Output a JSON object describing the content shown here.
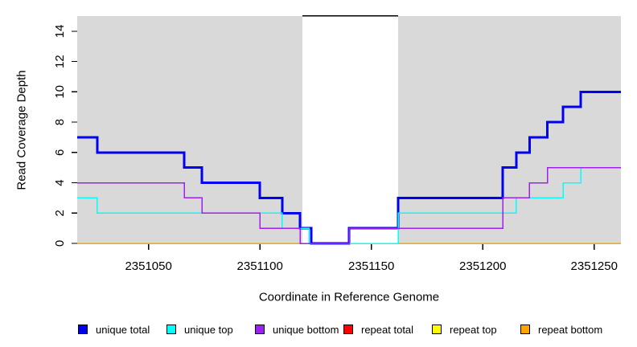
{
  "chart_data": {
    "type": "step",
    "title": "",
    "xlabel": "Coordinate in Reference Genome",
    "ylabel": "Read Coverage Depth",
    "xlim": [
      2351018,
      2351262
    ],
    "ylim": [
      0,
      15
    ],
    "x_ticks": [
      2351050,
      2351100,
      2351150,
      2351200,
      2351250
    ],
    "y_ticks": [
      0,
      2,
      4,
      6,
      8,
      10,
      12,
      14
    ],
    "grid": false,
    "plot_background": "#D9D9D9",
    "page_background": "#FFFFFF",
    "gap_region": {
      "x_start": 2351119,
      "x_end": 2351162,
      "fill": "#FFFFFF",
      "top_border_color": "#000000"
    },
    "series": [
      {
        "name": "repeat total",
        "color": "#FF0000",
        "line_width": 1.5,
        "steps": [
          [
            2351018,
            0
          ]
        ]
      },
      {
        "name": "repeat top",
        "color": "#FFFF00",
        "line_width": 1.5,
        "steps": [
          [
            2351018,
            0
          ]
        ]
      },
      {
        "name": "repeat bottom",
        "color": "#FFA500",
        "line_width": 1.5,
        "steps": [
          [
            2351018,
            0
          ]
        ]
      },
      {
        "name": "unique total",
        "color": "#0000F0",
        "line_width": 3,
        "steps": [
          [
            2351018,
            7
          ],
          [
            2351027,
            6
          ],
          [
            2351066,
            5
          ],
          [
            2351074,
            4
          ],
          [
            2351100,
            3
          ],
          [
            2351110,
            2
          ],
          [
            2351118,
            1
          ],
          [
            2351123,
            0
          ],
          [
            2351140,
            1
          ],
          [
            2351162,
            3
          ],
          [
            2351209,
            5
          ],
          [
            2351215,
            6
          ],
          [
            2351221,
            7
          ],
          [
            2351229,
            8
          ],
          [
            2351236,
            9
          ],
          [
            2351244,
            10
          ]
        ]
      },
      {
        "name": "unique top",
        "color": "#00FFFF",
        "line_width": 1.5,
        "steps": [
          [
            2351018,
            3
          ],
          [
            2351027,
            2
          ],
          [
            2351110,
            1
          ],
          [
            2351122,
            0
          ],
          [
            2351162,
            2
          ],
          [
            2351215,
            3
          ],
          [
            2351236,
            4
          ],
          [
            2351244,
            5
          ]
        ]
      },
      {
        "name": "unique bottom",
        "color": "#A020F0",
        "line_width": 1.5,
        "steps": [
          [
            2351018,
            4
          ],
          [
            2351066,
            3
          ],
          [
            2351074,
            2
          ],
          [
            2351100,
            1
          ],
          [
            2351118,
            0
          ],
          [
            2351140,
            1
          ],
          [
            2351209,
            3
          ],
          [
            2351221,
            4
          ],
          [
            2351229,
            5
          ]
        ]
      }
    ],
    "legend": {
      "position": "bottom",
      "items": [
        {
          "label": "unique total",
          "color": "#0000F0"
        },
        {
          "label": "unique top",
          "color": "#00FFFF"
        },
        {
          "label": "unique bottom",
          "color": "#A020F0"
        },
        {
          "label": "repeat total",
          "color": "#FF0000"
        },
        {
          "label": "repeat top",
          "color": "#FFFF00"
        },
        {
          "label": "repeat bottom",
          "color": "#FFA500"
        }
      ]
    }
  }
}
